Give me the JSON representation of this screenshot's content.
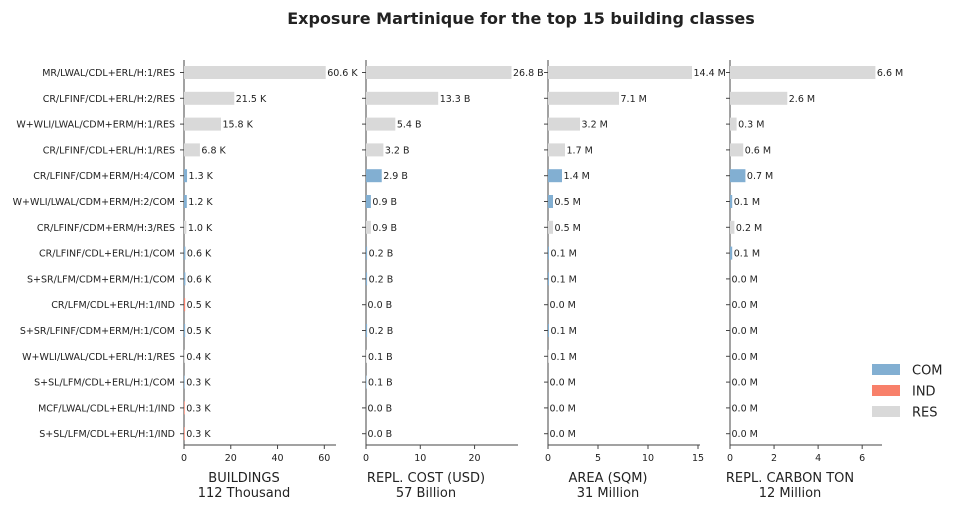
{
  "chart_data": {
    "type": "bar",
    "orientation": "horizontal",
    "title": "Exposure Martinique for the top 15 building classes",
    "categories": [
      "MR/LWAL/CDL+ERL/H:1/RES",
      "CR/LFINF/CDL+ERL/H:2/RES",
      "W+WLI/LWAL/CDM+ERM/H:1/RES",
      "CR/LFINF/CDL+ERL/H:1/RES",
      "CR/LFINF/CDM+ERM/H:4/COM",
      "W+WLI/LWAL/CDM+ERM/H:2/COM",
      "CR/LFINF/CDM+ERM/H:3/RES",
      "CR/LFINF/CDL+ERL/H:1/COM",
      "S+SR/LFM/CDM+ERM/H:1/COM",
      "CR/LFM/CDL+ERL/H:1/IND",
      "S+SR/LFINF/CDM+ERM/H:1/COM",
      "W+WLI/LWAL/CDL+ERL/H:1/RES",
      "S+SL/LFM/CDL+ERL/H:1/COM",
      "MCF/LWAL/CDL+ERL/H:1/IND",
      "S+SL/LFM/CDL+ERL/H:1/IND"
    ],
    "occupancy": [
      "RES",
      "RES",
      "RES",
      "RES",
      "COM",
      "COM",
      "RES",
      "COM",
      "COM",
      "IND",
      "COM",
      "RES",
      "COM",
      "IND",
      "IND"
    ],
    "colors": {
      "COM": "#82afd2",
      "IND": "#f8806a",
      "RES": "#d9d9d9"
    },
    "legend": [
      "COM",
      "IND",
      "RES"
    ],
    "legend_position": "bottom-right",
    "panels": [
      {
        "xlabel": "BUILDINGS",
        "total": "112 Thousand",
        "xlim": [
          0,
          65
        ],
        "xticks": [
          0,
          20,
          40,
          60
        ],
        "values": [
          60.6,
          21.5,
          15.8,
          6.8,
          1.3,
          1.2,
          1.0,
          0.6,
          0.6,
          0.5,
          0.5,
          0.4,
          0.3,
          0.3,
          0.3
        ],
        "labels": [
          "60.6 K",
          "21.5 K",
          "15.8 K",
          "6.8 K",
          "1.3 K",
          "1.2 K",
          "1.0 K",
          "0.6 K",
          "0.6 K",
          "0.5 K",
          "0.5 K",
          "0.4 K",
          "0.3 K",
          "0.3 K",
          "0.3 K"
        ]
      },
      {
        "xlabel": "REPL. COST (USD)",
        "total": "57 Billion",
        "xlim": [
          0,
          28
        ],
        "xticks": [
          0,
          10,
          20
        ],
        "values": [
          26.8,
          13.3,
          5.4,
          3.2,
          2.9,
          0.9,
          0.9,
          0.2,
          0.2,
          0.0,
          0.2,
          0.1,
          0.1,
          0.0,
          0.0
        ],
        "labels": [
          "26.8 B",
          "13.3 B",
          "5.4 B",
          "3.2 B",
          "2.9 B",
          "0.9 B",
          "0.9 B",
          "0.2 B",
          "0.2 B",
          "0.0 B",
          "0.2 B",
          "0.1 B",
          "0.1 B",
          "0.0 B",
          "0.0 B"
        ]
      },
      {
        "xlabel": "AREA (SQM)",
        "total": "31 Million",
        "xlim": [
          0,
          15.2
        ],
        "xticks": [
          0,
          5,
          10,
          15
        ],
        "values": [
          14.4,
          7.1,
          3.2,
          1.7,
          1.4,
          0.5,
          0.5,
          0.1,
          0.1,
          0.0,
          0.1,
          0.1,
          0.0,
          0.0,
          0.0
        ],
        "labels": [
          "14.4 M",
          "7.1 M",
          "3.2 M",
          "1.7 M",
          "1.4 M",
          "0.5 M",
          "0.5 M",
          "0.1 M",
          "0.1 M",
          "0.0 M",
          "0.1 M",
          "0.1 M",
          "0.0 M",
          "0.0 M",
          "0.0 M"
        ]
      },
      {
        "xlabel": "REPL. CARBON TON",
        "total": "12 Million",
        "xlim": [
          0,
          6.9
        ],
        "xticks": [
          0,
          2,
          4,
          6
        ],
        "values": [
          6.6,
          2.6,
          0.3,
          0.6,
          0.7,
          0.1,
          0.2,
          0.1,
          0.0,
          0.0,
          0.0,
          0.0,
          0.0,
          0.0,
          0.0
        ],
        "labels": [
          "6.6 M",
          "2.6 M",
          "0.3 M",
          "0.6 M",
          "0.7 M",
          "0.1 M",
          "0.2 M",
          "0.1 M",
          "0.0 M",
          "0.0 M",
          "0.0 M",
          "0.0 M",
          "0.0 M",
          "0.0 M",
          "0.0 M"
        ]
      }
    ]
  }
}
